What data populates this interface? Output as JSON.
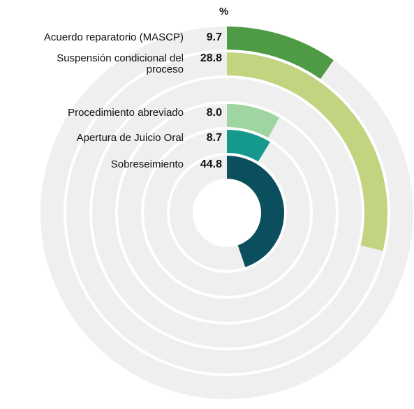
{
  "chart_data": {
    "type": "radial_bar",
    "unit_label": "%",
    "categories": [
      "Acuerdo reparatorio (MASCP)",
      "Suspensión condicional del proceso",
      "Procedimiento abreviado",
      "Apertura de Juicio Oral",
      "Sobreseimiento"
    ],
    "values": [
      9.7,
      28.8,
      8.0,
      8.7,
      44.8
    ],
    "value_labels": [
      "9.7",
      "28.8",
      "8.0",
      "8.7",
      "44.8"
    ],
    "colors": [
      "#4f9a45",
      "#c2d47f",
      "#9fd4a3",
      "#14998c",
      "#0b4f5e"
    ],
    "ylim": [
      0,
      100
    ]
  }
}
